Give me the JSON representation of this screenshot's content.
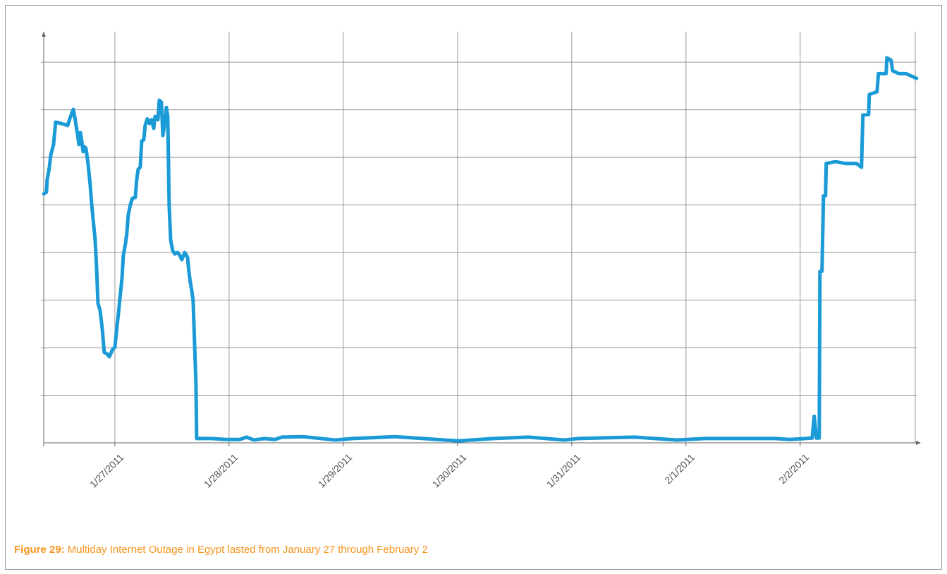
{
  "chart_data": {
    "type": "line",
    "caption_label": "Figure 29:",
    "caption": "Multiday Internet Outage in Egypt lasted from January 27 through February 2",
    "xlim": [
      -0.623,
      7.02
    ],
    "ylim": [
      0,
      8.64
    ],
    "xticks": [
      {
        "value": 0,
        "label": "1/27/2011"
      },
      {
        "value": 1,
        "label": "1/28/2011"
      },
      {
        "value": 2,
        "label": "1/29/2011"
      },
      {
        "value": 3,
        "label": "1/30/2011"
      },
      {
        "value": 4,
        "label": "1/31/2011"
      },
      {
        "value": 5,
        "label": "2/1/2011"
      },
      {
        "value": 6,
        "label": "2/2/2011"
      }
    ],
    "ygrid": [
      1,
      2,
      3,
      4,
      5,
      6,
      7,
      8
    ],
    "grid": true,
    "series": [
      {
        "color": "#1a9ad6",
        "x": [
          -0.623,
          -0.599,
          -0.593,
          -0.574,
          -0.562,
          -0.537,
          -0.519,
          -0.451,
          -0.414,
          -0.395,
          -0.364,
          -0.352,
          -0.34,
          -0.327,
          -0.315,
          -0.302,
          -0.29,
          -0.278,
          -0.265,
          -0.253,
          -0.235,
          -0.216,
          -0.204,
          -0.191,
          -0.173,
          -0.16,
          -0.148,
          -0.13,
          -0.111,
          -0.093,
          -0.068,
          -0.049,
          -0.031,
          -0.019,
          0,
          0.019,
          0.031,
          0.043,
          0.062,
          0.074,
          0.093,
          0.105,
          0.117,
          0.136,
          0.154,
          0.179,
          0.191,
          0.204,
          0.222,
          0.235,
          0.253,
          0.265,
          0.284,
          0.302,
          0.321,
          0.34,
          0.352,
          0.377,
          0.389,
          0.407,
          0.42,
          0.432,
          0.451,
          0.463,
          0.475,
          0.488,
          0.506,
          0.525,
          0.549,
          0.568,
          0.586,
          0.611,
          0.636,
          0.648,
          0.66,
          0.673,
          0.685,
          0.698,
          0.71,
          0.716,
          0.846,
          0.969,
          1.093,
          1.154,
          1.216,
          1.309,
          1.401,
          1.463,
          1.648,
          1.926,
          2.08,
          2.451,
          2.698,
          3.006,
          3.315,
          3.623,
          3.932,
          4.056,
          4.549,
          4.92,
          5.167,
          5.784,
          5.907,
          6.105,
          6.123,
          6.142,
          6.167,
          6.173,
          6.191,
          6.204,
          6.222,
          6.228,
          6.309,
          6.401,
          6.494,
          6.537,
          6.549,
          6.599,
          6.605,
          6.673,
          6.685,
          6.753,
          6.759,
          6.796,
          6.809,
          6.864,
          6.926,
          7.019
        ],
        "values": [
          5.23,
          5.27,
          5.53,
          5.78,
          6.04,
          6.27,
          6.74,
          6.7,
          6.67,
          6.81,
          7.01,
          6.86,
          6.67,
          6.49,
          6.27,
          6.52,
          6.34,
          6.12,
          6.22,
          6.19,
          5.87,
          5.42,
          5.04,
          4.71,
          4.27,
          3.67,
          2.93,
          2.79,
          2.41,
          1.9,
          1.87,
          1.81,
          1.9,
          1.97,
          2.01,
          2.46,
          2.71,
          3.01,
          3.45,
          3.94,
          4.19,
          4.41,
          4.79,
          5.01,
          5.14,
          5.16,
          5.53,
          5.75,
          5.79,
          6.34,
          6.37,
          6.67,
          6.81,
          6.71,
          6.79,
          6.61,
          6.86,
          6.79,
          7.2,
          7.16,
          6.46,
          6.64,
          7.05,
          6.86,
          5.01,
          4.27,
          4.04,
          3.97,
          4.0,
          3.94,
          3.85,
          4.0,
          3.9,
          3.6,
          3.38,
          3.2,
          2.99,
          2.07,
          1.23,
          0.09,
          0.09,
          0.07,
          0.07,
          0.12,
          0.06,
          0.09,
          0.07,
          0.12,
          0.13,
          0.06,
          0.09,
          0.13,
          0.09,
          0.04,
          0.09,
          0.12,
          0.06,
          0.09,
          0.12,
          0.06,
          0.09,
          0.09,
          0.07,
          0.1,
          0.56,
          0.1,
          0.1,
          3.6,
          3.61,
          5.19,
          5.19,
          5.87,
          5.91,
          5.87,
          5.87,
          5.79,
          6.89,
          6.9,
          7.32,
          7.38,
          7.76,
          7.76,
          8.09,
          8.04,
          7.82,
          7.76,
          7.76,
          7.66
        ]
      }
    ]
  }
}
